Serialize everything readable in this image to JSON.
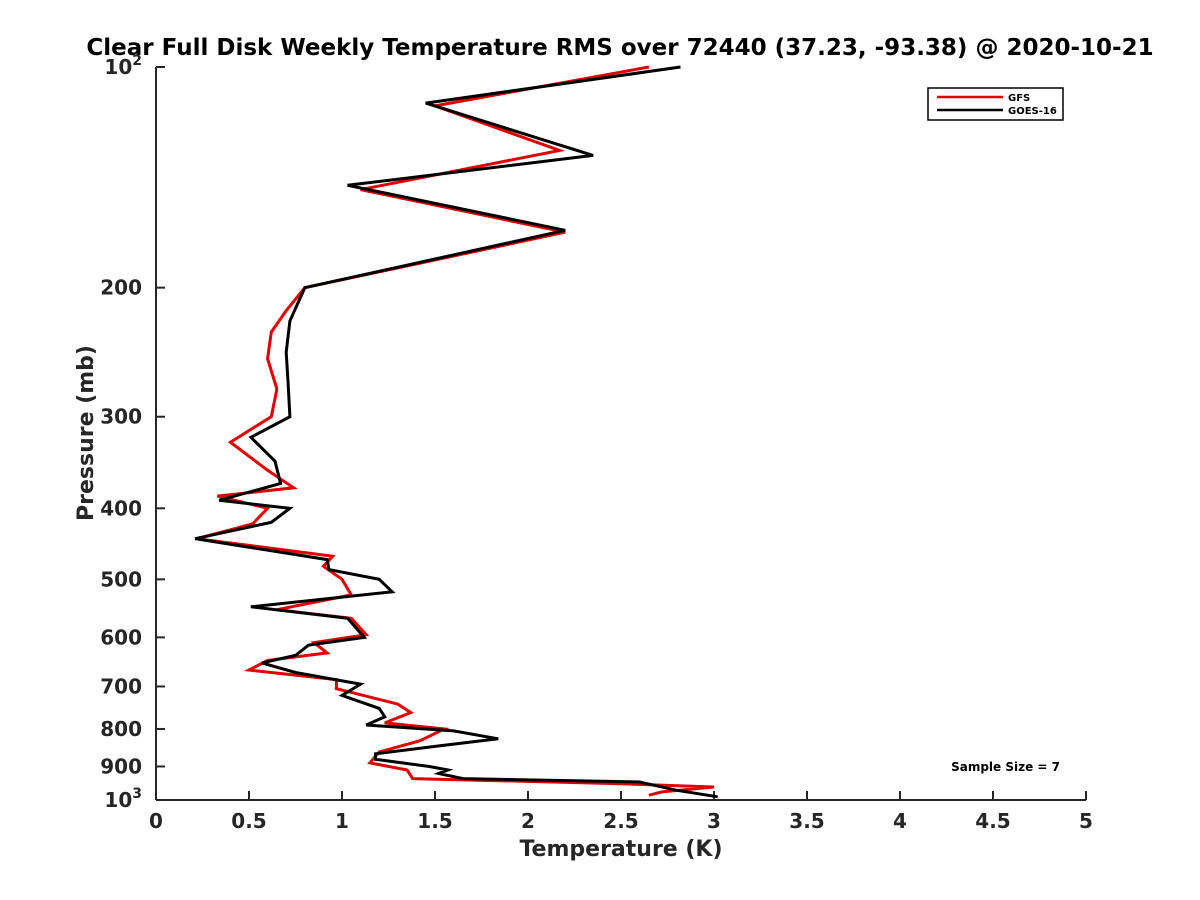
{
  "chart_data": {
    "type": "line",
    "title": "Clear Full Disk Weekly Temperature RMS over 72440 (37.23, -93.38) @ 2020-10-21",
    "xlabel": "Temperature (K)",
    "ylabel": "Pressure (mb)",
    "xlim": [
      0,
      5
    ],
    "ylim": [
      1000,
      100
    ],
    "y_scale": "log",
    "x_ticks": [
      "0",
      "0.5",
      "1",
      "1.5",
      "2",
      "2.5",
      "3",
      "3.5",
      "4",
      "4.5",
      "5"
    ],
    "y_ticks": [
      {
        "value": 100,
        "base": "10",
        "exp": "2"
      },
      {
        "value": 200,
        "label": "200"
      },
      {
        "value": 300,
        "label": "300"
      },
      {
        "value": 400,
        "label": "400"
      },
      {
        "value": 500,
        "label": "500"
      },
      {
        "value": 600,
        "label": "600"
      },
      {
        "value": 700,
        "label": "700"
      },
      {
        "value": 800,
        "label": "800"
      },
      {
        "value": 900,
        "label": "900"
      },
      {
        "value": 1000,
        "base": "10",
        "exp": "3"
      }
    ],
    "grid": false,
    "legend_position": "top-right",
    "annotation": "Sample Size = 7",
    "series": [
      {
        "name": "GFS",
        "color": "#e00000",
        "points": [
          [
            2.65,
            100
          ],
          [
            1.5,
            113
          ],
          [
            2.17,
            130
          ],
          [
            1.1,
            147
          ],
          [
            2.2,
            168
          ],
          [
            0.8,
            200
          ],
          [
            0.7,
            215
          ],
          [
            0.62,
            230
          ],
          [
            0.6,
            250
          ],
          [
            0.65,
            275
          ],
          [
            0.62,
            300
          ],
          [
            0.4,
            325
          ],
          [
            0.6,
            355
          ],
          [
            0.74,
            375
          ],
          [
            0.33,
            385
          ],
          [
            0.6,
            400
          ],
          [
            0.52,
            420
          ],
          [
            0.22,
            440
          ],
          [
            0.95,
            465
          ],
          [
            0.9,
            480
          ],
          [
            1.0,
            500
          ],
          [
            1.05,
            525
          ],
          [
            0.65,
            550
          ],
          [
            1.05,
            565
          ],
          [
            1.13,
            595
          ],
          [
            0.85,
            610
          ],
          [
            0.92,
            630
          ],
          [
            0.6,
            645
          ],
          [
            0.5,
            665
          ],
          [
            0.97,
            685
          ],
          [
            0.97,
            705
          ],
          [
            1.3,
            740
          ],
          [
            1.37,
            760
          ],
          [
            1.23,
            785
          ],
          [
            1.55,
            800
          ],
          [
            1.42,
            830
          ],
          [
            1.2,
            860
          ],
          [
            1.15,
            890
          ],
          [
            1.35,
            910
          ],
          [
            1.38,
            935
          ],
          [
            2.5,
            950
          ],
          [
            3.0,
            960
          ],
          [
            2.72,
            975
          ],
          [
            2.65,
            985
          ]
        ]
      },
      {
        "name": "GOES-16",
        "color": "#000000",
        "points": [
          [
            2.82,
            100
          ],
          [
            1.45,
            112
          ],
          [
            2.35,
            132
          ],
          [
            1.03,
            145
          ],
          [
            2.2,
            167
          ],
          [
            0.8,
            200
          ],
          [
            0.72,
            222
          ],
          [
            0.7,
            245
          ],
          [
            0.71,
            270
          ],
          [
            0.72,
            300
          ],
          [
            0.51,
            320
          ],
          [
            0.64,
            345
          ],
          [
            0.67,
            370
          ],
          [
            0.34,
            390
          ],
          [
            0.72,
            400
          ],
          [
            0.62,
            418
          ],
          [
            0.21,
            440
          ],
          [
            0.92,
            470
          ],
          [
            0.93,
            485
          ],
          [
            1.2,
            500
          ],
          [
            1.27,
            520
          ],
          [
            0.51,
            545
          ],
          [
            1.03,
            565
          ],
          [
            1.12,
            600
          ],
          [
            0.82,
            615
          ],
          [
            0.75,
            635
          ],
          [
            0.57,
            650
          ],
          [
            0.75,
            670
          ],
          [
            1.1,
            695
          ],
          [
            1.0,
            720
          ],
          [
            1.2,
            750
          ],
          [
            1.23,
            770
          ],
          [
            1.13,
            790
          ],
          [
            1.6,
            805
          ],
          [
            1.84,
            825
          ],
          [
            1.5,
            845
          ],
          [
            1.18,
            865
          ],
          [
            1.18,
            880
          ],
          [
            1.47,
            900
          ],
          [
            1.57,
            910
          ],
          [
            1.52,
            920
          ],
          [
            1.65,
            935
          ],
          [
            2.6,
            945
          ],
          [
            2.8,
            970
          ],
          [
            3.02,
            990
          ]
        ]
      }
    ]
  }
}
